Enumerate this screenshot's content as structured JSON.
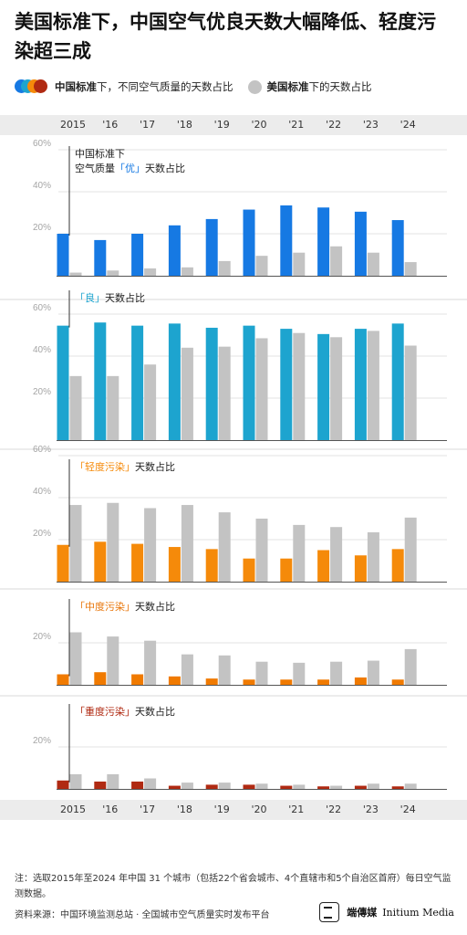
{
  "title": "美国标准下，中国空气优良天数大幅降低、轻度污染超三成",
  "legend": {
    "china_std": "中国标准",
    "china_rest": "下，不同空气质量的天数占比",
    "us_std": "美国标准",
    "us_rest": "下的天数占比"
  },
  "colors": {
    "excellent": "#1679e3",
    "good": "#1da4cf",
    "light": "#f58a0a",
    "moderate": "#f07a00",
    "heavy": "#b02a12",
    "us": "#c3c3c3"
  },
  "chart_data": {
    "type": "bar",
    "categories": [
      "2015",
      "'16",
      "'17",
      "'18",
      "'19",
      "'20",
      "'21",
      "'22",
      "'23",
      "'24"
    ],
    "ylim": [
      0,
      60
    ],
    "ticks": [
      "20%",
      "40%",
      "60%"
    ],
    "panels": [
      {
        "label_lines": [
          "中国标准下",
          "空气质量「优」天数占比"
        ],
        "show_ticks": [
          "20%",
          "40%",
          "60%"
        ],
        "series": [
          {
            "name": "中国标准",
            "values": [
              20,
              17,
              20,
              24,
              27,
              31.5,
              33.5,
              32.5,
              30.5,
              26.5
            ]
          },
          {
            "name": "美国标准",
            "values": [
              1.5,
              2.5,
              3.5,
              4,
              7,
              9.5,
              11,
              14,
              11,
              6.5
            ]
          }
        ]
      },
      {
        "label_lines": [
          "「良」天数占比"
        ],
        "show_ticks": [
          "20%",
          "40%",
          "60%"
        ],
        "series": [
          {
            "name": "中国标准",
            "values": [
              54.5,
              56,
              54.5,
              55.5,
              53.5,
              54.5,
              53,
              50.5,
              53,
              55.5
            ]
          },
          {
            "name": "美国标准",
            "values": [
              30.5,
              30.5,
              36,
              44,
              44.5,
              48.5,
              51,
              49,
              52,
              45
            ]
          }
        ]
      },
      {
        "label_lines": [
          "「轻度污染」天数占比"
        ],
        "show_ticks": [
          "20%",
          "40%",
          "60%"
        ],
        "series": [
          {
            "name": "中国标准",
            "values": [
              17.5,
              19,
              18,
              16.5,
              15.5,
              11,
              11,
              15,
              12.5,
              15.5
            ]
          },
          {
            "name": "美国标准",
            "values": [
              36.5,
              37.5,
              35,
              36.5,
              33,
              30,
              27,
              26,
              23.5,
              30.5
            ]
          }
        ]
      },
      {
        "label_lines": [
          "「中度污染」天数占比"
        ],
        "show_ticks": [
          "20%"
        ],
        "series": [
          {
            "name": "中国标准",
            "values": [
              5,
              6,
              5,
              4,
              3,
              2.5,
              2.5,
              2.5,
              3.5,
              2.5
            ]
          },
          {
            "name": "美国标准",
            "values": [
              25,
              23,
              21,
              14.5,
              14,
              11,
              10.5,
              11,
              11.5,
              17
            ]
          }
        ]
      },
      {
        "label_lines": [
          "「重度污染」天数占比"
        ],
        "show_ticks": [
          "20%"
        ],
        "series": [
          {
            "name": "中国标准",
            "values": [
              4,
              3.5,
              3.5,
              1.5,
              2,
              2,
              1.5,
              1.2,
              1.5,
              1.2
            ]
          },
          {
            "name": "美国标准",
            "values": [
              7,
              7,
              5,
              3,
              3,
              2.5,
              2,
              1.5,
              2.5,
              2.5
            ]
          }
        ]
      }
    ]
  },
  "note": "注：选取2015年至2024 年中国 31 个城市（包括22个省会城市、4个直辖市和5个自治区首府）每日空气监测数据。",
  "source": "资料来源：中国环境监测总站 · 全国城市空气质量实时发布平台",
  "brand": {
    "zh": "端傳媒",
    "en": "Initium Media"
  }
}
